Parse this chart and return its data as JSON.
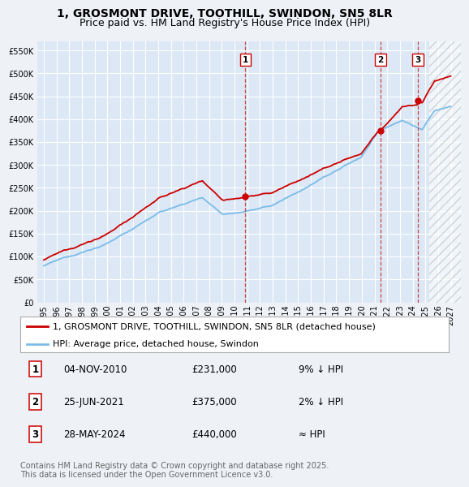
{
  "title": "1, GROSMONT DRIVE, TOOTHILL, SWINDON, SN5 8LR",
  "subtitle": "Price paid vs. HM Land Registry's House Price Index (HPI)",
  "ylim": [
    0,
    570000
  ],
  "yticks": [
    0,
    50000,
    100000,
    150000,
    200000,
    250000,
    300000,
    350000,
    400000,
    450000,
    500000,
    550000
  ],
  "xlim_start": 1994.5,
  "xlim_end": 2027.8,
  "background_color": "#eef2f7",
  "plot_bg_color": "#dce8f5",
  "grid_color": "#ffffff",
  "hpi_color": "#7bbce8",
  "price_color": "#cc0000",
  "sale_marker_color": "#cc0000",
  "dashed_line_color": "#cc3333",
  "legend_label_price": "1, GROSMONT DRIVE, TOOTHILL, SWINDON, SN5 8LR (detached house)",
  "legend_label_hpi": "HPI: Average price, detached house, Swindon",
  "transactions": [
    {
      "num": 1,
      "date": "04-NOV-2010",
      "price": 231000,
      "note": "9% ↓ HPI",
      "year": 2010.84
    },
    {
      "num": 2,
      "date": "25-JUN-2021",
      "price": 375000,
      "note": "2% ↓ HPI",
      "year": 2021.48
    },
    {
      "num": 3,
      "date": "28-MAY-2024",
      "price": 440000,
      "note": "≈ HPI",
      "year": 2024.41
    }
  ],
  "footer": "Contains HM Land Registry data © Crown copyright and database right 2025.\nThis data is licensed under the Open Government Licence v3.0.",
  "title_fontsize": 10,
  "subtitle_fontsize": 9,
  "tick_fontsize": 7,
  "legend_fontsize": 8,
  "table_fontsize": 8.5
}
